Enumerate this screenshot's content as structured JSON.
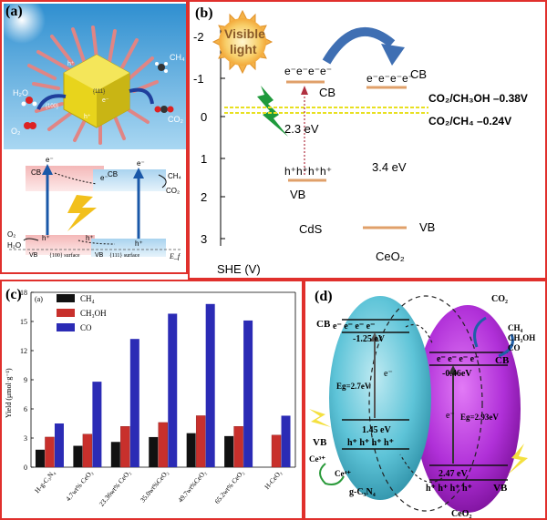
{
  "panel_a": {
    "tag": "(a)",
    "labels": {
      "h2o": "H₂O",
      "o2": "O₂",
      "ch4": "CH₄",
      "co2": "CO₂",
      "facet100": "{100}",
      "facet111": "{111}",
      "e": "e⁻",
      "h": "h⁺"
    },
    "band": {
      "cb_left": "CB",
      "cb_right": "CB",
      "vb_left": "VB",
      "vb_right": "VB",
      "surface100": "{100} surface",
      "surface111": "{111} surface",
      "o2": "O₂",
      "h2o": "H₂O",
      "ch4": "CH₄",
      "co2": "CO₂",
      "ef": "E_f",
      "e": "e⁻",
      "h": "h⁺"
    },
    "colors": {
      "sky": "#5aa9dc",
      "crystal": "#e6d21a",
      "rod": "#e08585",
      "cb_pink": "#f6c5c5",
      "cb_blue": "#bcdcf0"
    }
  },
  "panel_b": {
    "tag": "(b)",
    "sun_text_1": "Visible",
    "sun_text_2": "light",
    "yaxis_ticks": [
      "-2",
      "-1",
      "0",
      "1",
      "2",
      "3"
    ],
    "yaxis_label": "SHE (V)",
    "cds": {
      "electrons": "e⁻e⁻e⁻e⁻",
      "cb": "CB",
      "holes": "h⁺h⁺h⁺h⁺",
      "vb": "VB",
      "gap": "2.3 eV",
      "name": "CdS"
    },
    "ceo2": {
      "electrons": "e⁻e⁻e⁻e⁻",
      "cb": "CB",
      "gap": "3.4 eV",
      "vb": "VB",
      "name": "CeO₂"
    },
    "redox1": "CO₂/CH₃OH –0.38V",
    "redox2": "CO₂/CH₄ –0.24V",
    "colors": {
      "band": "#e0a06a",
      "arrow": "#3f6fb3",
      "redox": "#e8e020"
    }
  },
  "panel_c": {
    "tag": "(c)",
    "inner_tag": "(a)",
    "ylabel": "Yield (μmol·g⁻¹)",
    "yticks": [
      "0",
      "3",
      "6",
      "9",
      "12",
      "15",
      "18"
    ],
    "categories": [
      "H-g-C₃N₄",
      "4.7wt% CeO₂",
      "23.36wt% CeO₂",
      "35.0wt%CeO₂",
      "49.7wt%CeO₂",
      "65.2wt% CeO₂",
      "H-CeO₂"
    ],
    "legend": [
      "CH₄",
      "CH₃OH",
      "CO"
    ]
  },
  "panel_d": {
    "tag": "(d)",
    "co2_top": "CO₂",
    "products_1": "CH₄",
    "products_2": "CH₃OH",
    "products_3": "CO",
    "gcn": {
      "cb": "CB",
      "electrons": "e⁻ e⁻ e⁻ e⁻",
      "cb_val": "-1.25 eV",
      "e": "e⁻",
      "eg": "Eg=2.7eV",
      "vb_val": "1.45 eV",
      "holes": "h⁺ h⁺ h⁺ h⁺",
      "vb": "VB",
      "name": "g-C₃N₄"
    },
    "ceo2": {
      "electrons": "e⁻ e⁻ e⁻ e⁻",
      "cb": "CB",
      "cb_val": "-0.46eV",
      "e": "e⁻",
      "eg": "Eg=2.93eV",
      "vb_val": "2.47 eV",
      "holes": "h⁺ h⁺ h⁺ h⁺",
      "vb": "VB",
      "name": "CeO₂"
    },
    "ce3": "Ce³⁺",
    "ce4": "Ce⁴⁺",
    "colors": {
      "gcn": "#5ec4d8",
      "ceo2": "#b030d8"
    }
  },
  "chart_data": {
    "type": "bar",
    "categories": [
      "H-g-C₃N₄",
      "4.7wt% CeO₂",
      "23.36wt% CeO₂",
      "35.0wt%CeO₂",
      "49.7wt%CeO₂",
      "65.2wt% CeO₂",
      "H-CeO₂"
    ],
    "series": [
      {
        "name": "CH₄",
        "values": [
          1.8,
          2.2,
          2.6,
          3.1,
          3.5,
          3.2,
          0
        ],
        "color": "#111111"
      },
      {
        "name": "CH₃OH",
        "values": [
          3.1,
          3.4,
          4.2,
          4.6,
          5.3,
          4.2,
          3.3
        ],
        "color": "#c8302c"
      },
      {
        "name": "CO",
        "values": [
          4.5,
          8.8,
          13.2,
          15.8,
          16.8,
          15.1,
          5.3
        ],
        "color": "#2b2bb5"
      }
    ],
    "xlabel": "",
    "ylabel": "Yield (μmol·g⁻¹)",
    "ylim": [
      0,
      18
    ],
    "legend_position": "top-left",
    "grid": false
  }
}
